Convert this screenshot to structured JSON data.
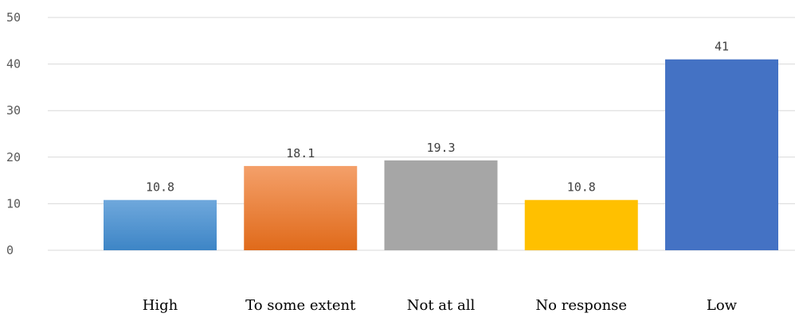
{
  "chart_data": {
    "type": "bar",
    "categories": [
      "High",
      "To some extent",
      "Not at all",
      "No response",
      "Low"
    ],
    "values": [
      10.8,
      18.1,
      19.3,
      10.8,
      41
    ],
    "data_labels": [
      "10.8",
      "18.1",
      "19.3",
      "10.8",
      "41"
    ],
    "yticks": [
      "0",
      "10",
      "20",
      "30",
      "40",
      "50"
    ],
    "ylim": [
      0,
      50
    ],
    "grid": true,
    "legend": "none",
    "colors": {
      "High": [
        "#6fa8dc",
        "#3d85c6"
      ],
      "To some extent": [
        "#f4a06a",
        "#e06a1a"
      ],
      "Not at all": [
        "#a6a6a6",
        "#a6a6a6"
      ],
      "No response": [
        "#ffc000",
        "#ffc000"
      ],
      "Low": [
        "#4472c4",
        "#4472c4"
      ]
    }
  }
}
